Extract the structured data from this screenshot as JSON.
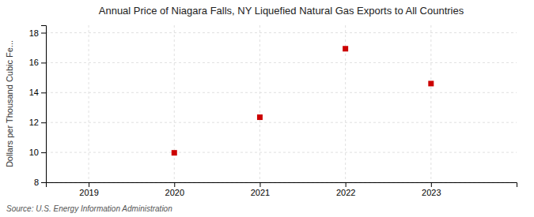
{
  "chart_data": {
    "type": "scatter",
    "title": "Annual Price of Niagara Falls, NY Liquefied Natural Gas Exports to All Countries",
    "ylabel": "Dollars per Thousand Cubic Fe...",
    "source": "Source: U.S. Energy Information Administration",
    "x": [
      2020,
      2021,
      2022,
      2023
    ],
    "values": [
      9.97,
      12.35,
      16.93,
      14.6
    ],
    "color": "#cc0000",
    "marker": "square",
    "xlim": [
      2018.5,
      2024.0
    ],
    "xticks": [
      2019,
      2020,
      2021,
      2022,
      2023
    ],
    "ylim": [
      8,
      18.5
    ],
    "yticks": [
      8,
      10,
      12,
      14,
      16,
      18
    ],
    "grid": true
  }
}
